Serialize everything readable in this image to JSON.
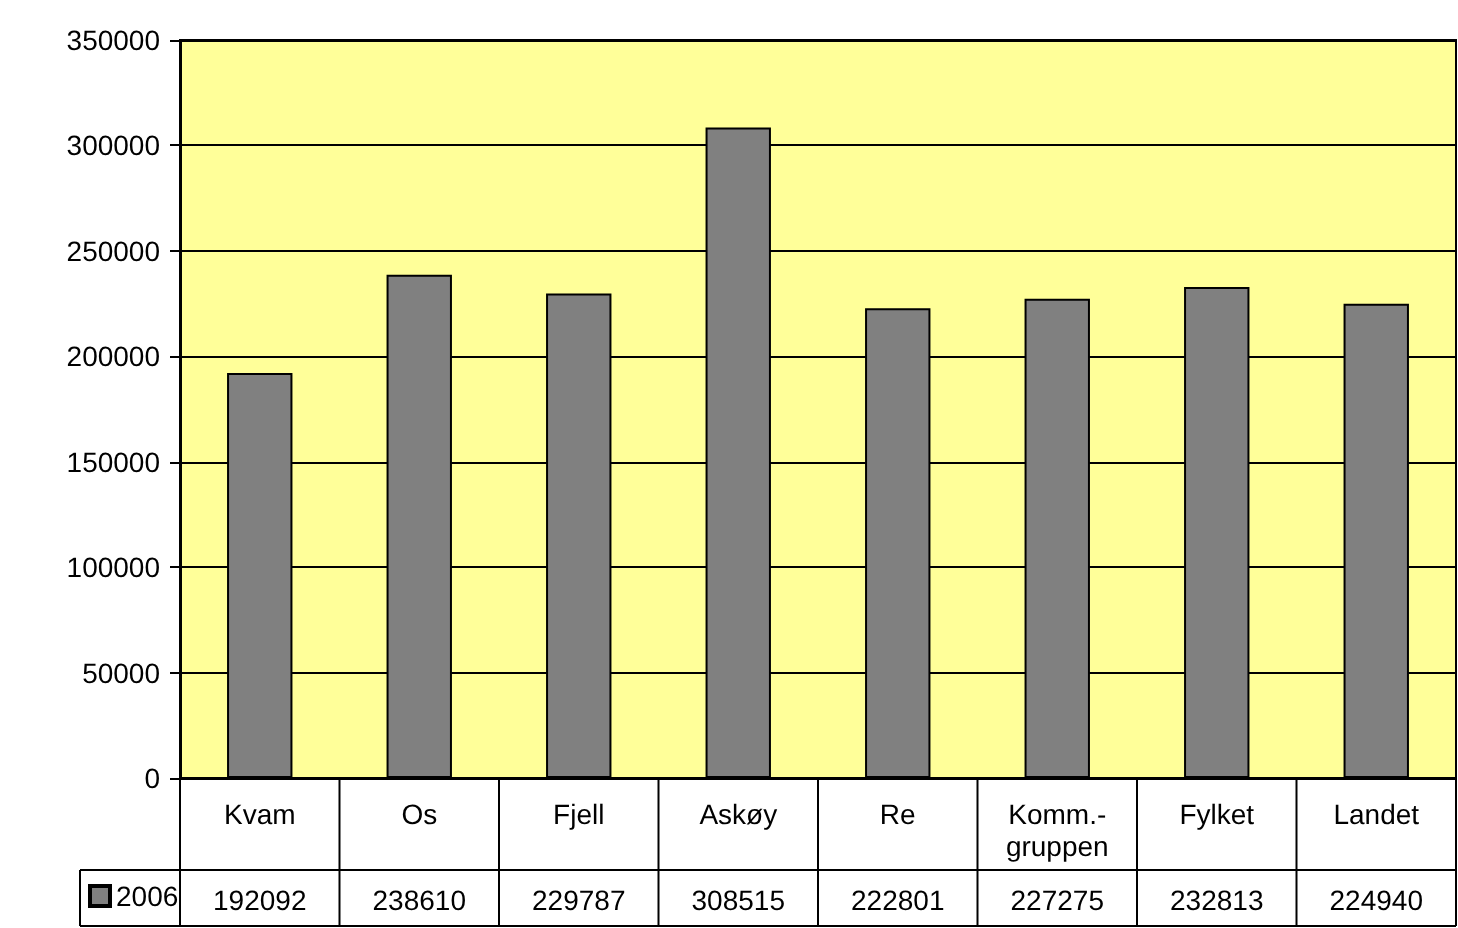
{
  "chart_data": {
    "type": "bar",
    "categories": [
      "Kvam",
      "Os",
      "Fjell",
      "Askøy",
      "Re",
      "Komm.-gruppen",
      "Fylket",
      "Landet"
    ],
    "series": [
      {
        "name": "2006",
        "color": "#808080",
        "values": [
          192092,
          238610,
          229787,
          308515,
          222801,
          227275,
          232813,
          224940
        ]
      }
    ],
    "ylim": [
      0,
      350000
    ],
    "yticks": [
      0,
      50000,
      100000,
      150000,
      200000,
      250000,
      300000,
      350000
    ],
    "grid": "y",
    "legend": "bottom left",
    "data_labels": true
  }
}
